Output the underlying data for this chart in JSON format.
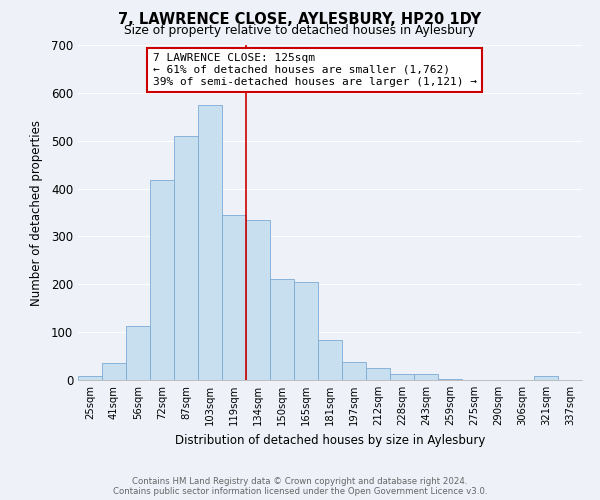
{
  "title": "7, LAWRENCE CLOSE, AYLESBURY, HP20 1DY",
  "subtitle": "Size of property relative to detached houses in Aylesbury",
  "xlabel": "Distribution of detached houses by size in Aylesbury",
  "ylabel": "Number of detached properties",
  "bar_labels": [
    "25sqm",
    "41sqm",
    "56sqm",
    "72sqm",
    "87sqm",
    "103sqm",
    "119sqm",
    "134sqm",
    "150sqm",
    "165sqm",
    "181sqm",
    "197sqm",
    "212sqm",
    "228sqm",
    "243sqm",
    "259sqm",
    "275sqm",
    "290sqm",
    "306sqm",
    "321sqm",
    "337sqm"
  ],
  "bar_values": [
    8,
    35,
    113,
    417,
    510,
    575,
    345,
    335,
    212,
    204,
    83,
    37,
    26,
    13,
    13,
    2,
    0,
    0,
    0,
    8,
    0
  ],
  "bar_color": "#c8dff0",
  "bar_edge_color": "#7baad4",
  "vline_color": "#cc0000",
  "vline_x_idx": 6,
  "annotation_title": "7 LAWRENCE CLOSE: 125sqm",
  "annotation_line1": "← 61% of detached houses are smaller (1,762)",
  "annotation_line2": "39% of semi-detached houses are larger (1,121) →",
  "annotation_box_color": "#ffffff",
  "annotation_box_edge": "#cc0000",
  "ylim": [
    0,
    700
  ],
  "yticks": [
    0,
    100,
    200,
    300,
    400,
    500,
    600,
    700
  ],
  "footer_line1": "Contains HM Land Registry data © Crown copyright and database right 2024.",
  "footer_line2": "Contains public sector information licensed under the Open Government Licence v3.0.",
  "bg_color": "#eef2f8"
}
